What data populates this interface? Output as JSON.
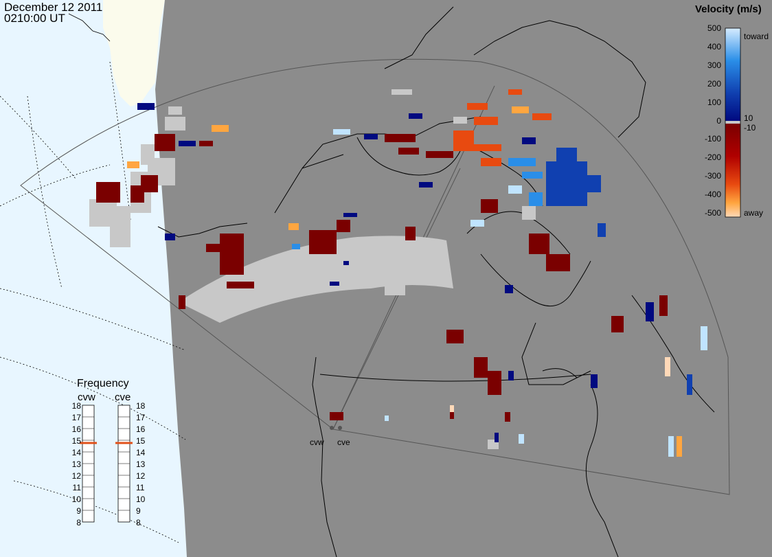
{
  "header": {
    "date": "December 12 2011",
    "time": "0210:00 UT"
  },
  "colorbar": {
    "title": "Velocity (m/s)",
    "ticks": [
      "500",
      "400",
      "300",
      "200",
      "100",
      "10",
      "0",
      "-10",
      "-100",
      "-200",
      "-300",
      "-400",
      "-500"
    ],
    "toward_label": "toward",
    "away_label": "away",
    "colors": {
      "toward_max": "#d6ecff",
      "toward_mid": "#2080e0",
      "toward_min": "#000a80",
      "away_min": "#7a0000",
      "away_mid": "#e84a10",
      "away_max": "#ffd9b8",
      "ground_scatter": "#c8c8c8"
    }
  },
  "frequency_panel": {
    "title": "Frequency",
    "radars": [
      {
        "name": "cvw",
        "frequency_mhz": 15
      },
      {
        "name": "cve",
        "frequency_mhz": 15
      }
    ],
    "scale": [
      "18",
      "17",
      "16",
      "15",
      "14",
      "13",
      "12",
      "11",
      "10",
      "9",
      "8"
    ],
    "marker_color": "#e0501a"
  },
  "map": {
    "ocean_color": "#e8f6ff",
    "land_color": "#fbfbec",
    "night_color": "#8c8c8c",
    "radar_sites": [
      {
        "name": "cvw"
      },
      {
        "name": "cve"
      }
    ]
  }
}
